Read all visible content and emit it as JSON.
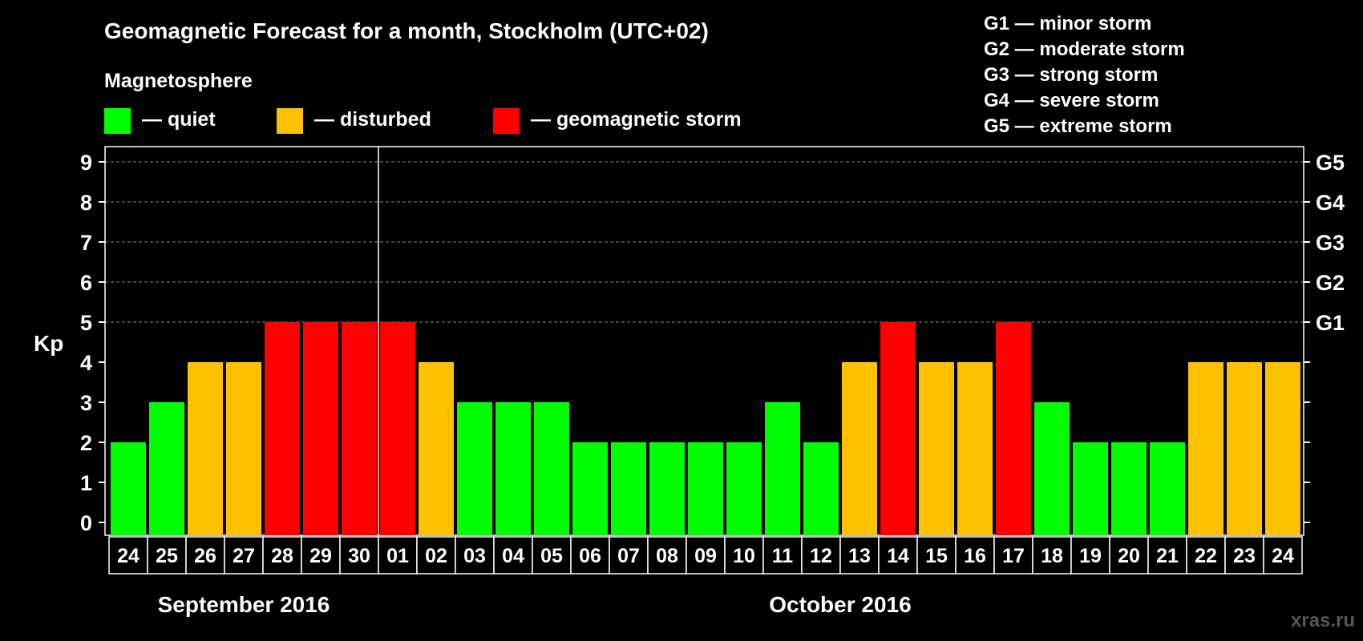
{
  "chart_data": {
    "type": "bar",
    "title": "Geomagnetic Forecast for a month, Stockholm (UTC+02)",
    "ylabel": "Kp",
    "ylim": [
      0,
      9
    ],
    "yticks": [
      "0",
      "1",
      "2",
      "3",
      "4",
      "5",
      "6",
      "7",
      "8",
      "9"
    ],
    "right_ticks": [
      {
        "kp": 5,
        "label": "G1"
      },
      {
        "kp": 6,
        "label": "G2"
      },
      {
        "kp": 7,
        "label": "G3"
      },
      {
        "kp": 8,
        "label": "G4"
      },
      {
        "kp": 9,
        "label": "G5"
      }
    ],
    "grid": true,
    "categories": [
      "24",
      "25",
      "26",
      "27",
      "28",
      "29",
      "30",
      "01",
      "02",
      "03",
      "04",
      "05",
      "06",
      "07",
      "08",
      "09",
      "10",
      "11",
      "12",
      "13",
      "14",
      "15",
      "16",
      "17",
      "18",
      "19",
      "20",
      "21",
      "22",
      "23",
      "24"
    ],
    "values": [
      2,
      3,
      4,
      4,
      5,
      5,
      5,
      5,
      4,
      3,
      3,
      3,
      2,
      2,
      2,
      2,
      2,
      3,
      2,
      4,
      5,
      4,
      4,
      5,
      3,
      2,
      2,
      2,
      4,
      4,
      4
    ],
    "months": [
      {
        "label": "September 2016",
        "first_index": 0,
        "last_index": 6
      },
      {
        "label": "October 2016",
        "first_index": 7,
        "last_index": 30
      }
    ],
    "month_divider_after_index": 6,
    "legend_title": "Magnetosphere",
    "legend": [
      {
        "label": "— quiet",
        "color": "#00ff00",
        "min_kp": 0
      },
      {
        "label": "— disturbed",
        "color": "#ffc000",
        "min_kp": 4
      },
      {
        "label": "— geomagnetic storm",
        "color": "#ff0000",
        "min_kp": 5
      }
    ],
    "storm_scale": [
      "G1 — minor storm",
      "G2 — moderate storm",
      "G3 — strong storm",
      "G4 — severe storm",
      "G5 — extreme storm"
    ],
    "watermark": "xras.ru"
  }
}
